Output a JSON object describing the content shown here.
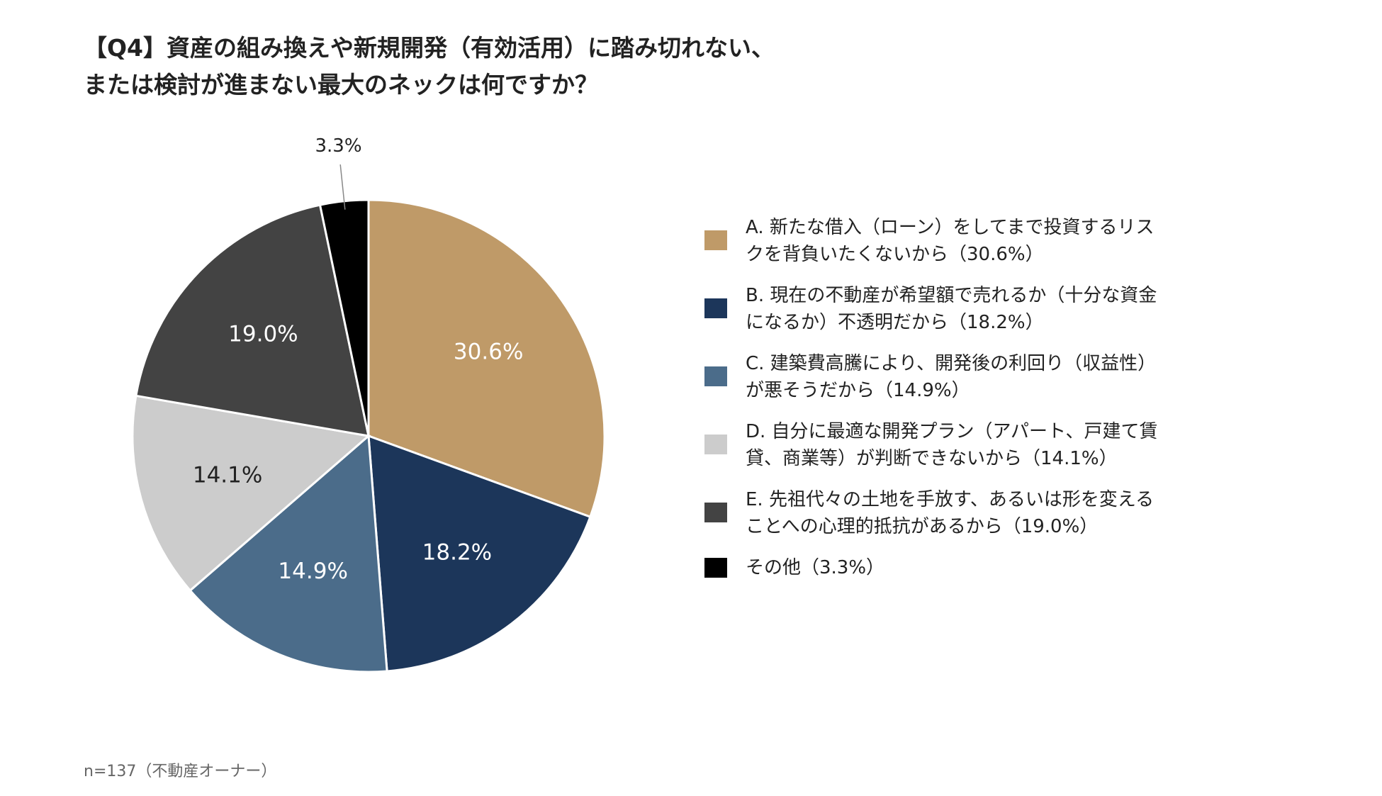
{
  "title": {
    "line1": "【Q4】資産の組み換えや新規開発（有効活用）に踏み切れない、",
    "line2": "または検討が進まない最大のネックは何ですか？"
  },
  "footnote": "n=137（不動産オーナー）",
  "chart_data": {
    "type": "pie",
    "title": "【Q4】資産の組み換えや新規開発（有効活用）に踏み切れない、または検討が進まない最大のネックは何ですか？",
    "categories": [
      "A",
      "B",
      "C",
      "D",
      "E",
      "その他"
    ],
    "values": [
      30.6,
      18.2,
      14.9,
      14.1,
      19.0,
      3.3
    ],
    "data_labels": [
      "30.6%",
      "18.2%",
      "14.9%",
      "14.1%",
      "19.0%",
      "3.3%"
    ],
    "colors": [
      "#BF9A68",
      "#1C365A",
      "#4B6C8A",
      "#CCCCCC",
      "#434343",
      "#000000"
    ],
    "label_colors": [
      "#ffffff",
      "#ffffff",
      "#ffffff",
      "#222222",
      "#ffffff",
      "#222222"
    ],
    "legend": [
      {
        "line1": "A. 新たな借入（ローン）をしてまで投資するリス",
        "line2": "クを背負いたくないから（30.6%）"
      },
      {
        "line1": "B. 現在の不動産が希望額で売れるか（十分な資金",
        "line2": "になるか）不透明だから（18.2%）"
      },
      {
        "line1": "C. 建築費高騰により、開発後の利回り（収益性）",
        "line2": "が悪そうだから（14.9%）"
      },
      {
        "line1": "D. 自分に最適な開発プラン（アパート、戸建て賃",
        "line2": "貸、商業等）が判断できないから（14.1%）"
      },
      {
        "line1": "E. 先祖代々の土地を手放す、あるいは形を変える",
        "line2": "ことへの心理的抵抗があるから（19.0%）"
      },
      {
        "line1": "その他（3.3%）",
        "line2": ""
      }
    ],
    "legend_position": "right",
    "start_angle": "12 o'clock",
    "direction": "clockwise"
  }
}
